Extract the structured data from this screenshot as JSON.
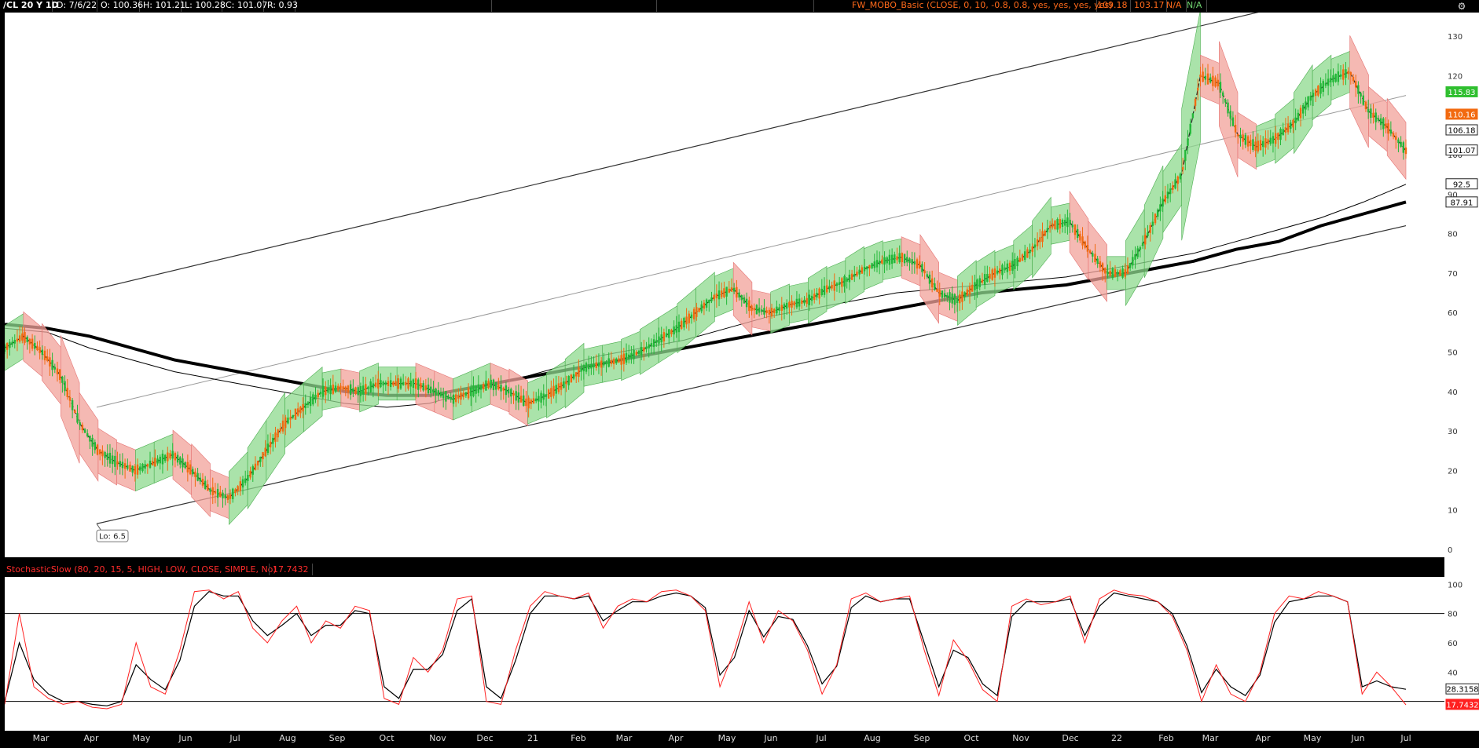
{
  "header": {
    "symbol": "/CL 20 Y 1D",
    "date": "D: 7/6/22",
    "open": "O: 100.36",
    "high": "H: 101.21",
    "low": "L: 100.28",
    "close": "C: 101.07",
    "range": "R: 0.93",
    "study_name": "FW_MOBO_Basic (CLOSE, 0, 10, -0.8, 0.8, yes, yes, yes, yes)",
    "study_val1": "109.18",
    "study_val2": "103.17",
    "study_na1": "N/A",
    "study_na2": "N/A"
  },
  "stoch_header": {
    "title": "StochasticSlow (80, 20, 15, 5, HIGH, LOW, CLOSE, SIMPLE, No)",
    "value": "17.7432"
  },
  "gear_icon": "⚙",
  "colors": {
    "up": "#22b838",
    "down": "#f26a10",
    "band_up": "#8ed98e",
    "band_down": "#f2a29a",
    "stoch_k": "#ff2020",
    "stoch_d": "#000000",
    "price_badge_green": "#2fbf2f",
    "price_badge_orange": "#f26a10"
  },
  "chart_data": [
    {
      "type": "line",
      "title": "/CL 20 Y 1D",
      "x_ticks": [
        "Mar",
        "Apr",
        "May",
        "Jun",
        "Jul",
        "Aug",
        "Sep",
        "Oct",
        "Nov",
        "Dec",
        "21",
        "Feb",
        "Mar",
        "Apr",
        "May",
        "Jun",
        "Jul",
        "Aug",
        "Sep",
        "Oct",
        "Nov",
        "Dec",
        "22",
        "Feb",
        "Mar",
        "Apr",
        "May",
        "Jun",
        "Jul"
      ],
      "y_ticks": [
        0,
        10,
        20,
        30,
        40,
        50,
        60,
        70,
        80,
        90,
        100,
        110,
        120,
        130
      ],
      "ylim": [
        -2,
        136
      ],
      "price_labels": [
        {
          "text": "115.83",
          "value": 115.83,
          "color": "green"
        },
        {
          "text": "110.16",
          "value": 110.16,
          "color": "orange"
        },
        {
          "text": "106.18",
          "value": 106.18,
          "color": "white"
        },
        {
          "text": "101.07",
          "value": 101.07,
          "color": "white"
        },
        {
          "text": "92.5",
          "value": 92.5,
          "color": "white"
        },
        {
          "text": "87.91",
          "value": 87.91,
          "color": "white"
        }
      ],
      "annotation": {
        "text": "Lo: 6.5",
        "value": 6.5
      },
      "close_series": [
        51,
        54,
        50,
        44,
        32,
        25,
        22,
        20,
        22,
        24,
        20,
        15,
        13,
        18,
        25,
        32,
        36,
        40,
        41,
        40,
        42,
        42,
        42,
        40,
        38,
        40,
        42,
        40,
        37,
        39,
        42,
        46,
        47,
        48,
        50,
        53,
        56,
        60,
        64,
        66,
        61,
        60,
        62,
        63,
        66,
        68,
        71,
        73,
        74,
        72,
        65,
        63,
        67,
        70,
        72,
        76,
        82,
        83,
        76,
        70,
        70,
        78,
        88,
        95,
        120,
        118,
        105,
        102,
        104,
        108,
        115,
        119,
        121,
        111,
        107,
        101
      ],
      "ma_thick": [
        57,
        56,
        54,
        51,
        48,
        46,
        44,
        42,
        40,
        39,
        39,
        41,
        43,
        45,
        47,
        49,
        51,
        53,
        55,
        57,
        59,
        61,
        63,
        65,
        66,
        67,
        69,
        71,
        73,
        76,
        78,
        82,
        85,
        88
      ],
      "ma_thin": [
        56,
        55,
        51,
        48,
        45,
        43,
        41,
        39,
        37,
        36,
        37,
        40,
        43,
        46,
        49,
        51,
        53,
        56,
        59,
        61,
        63,
        65,
        66,
        67,
        68,
        69,
        71,
        73,
        75,
        78,
        81,
        84,
        88,
        92.5
      ]
    },
    {
      "type": "line",
      "title": "StochasticSlow (80, 20, 15, 5, HIGH, LOW, CLOSE, SIMPLE, No)",
      "y_ticks": [
        20,
        40,
        60,
        80,
        100
      ],
      "ylim": [
        0,
        105
      ],
      "overbought": 80,
      "oversold": 20,
      "last_values": [
        {
          "text": "28.3158",
          "value": 28.3158
        },
        {
          "text": "17.7432",
          "value": 17.7432
        }
      ],
      "k_series": [
        18,
        80,
        30,
        22,
        18,
        20,
        16,
        15,
        18,
        60,
        30,
        25,
        55,
        95,
        96,
        90,
        95,
        70,
        60,
        75,
        85,
        60,
        75,
        70,
        85,
        82,
        22,
        18,
        50,
        40,
        55,
        90,
        92,
        20,
        18,
        55,
        85,
        95,
        92,
        90,
        94,
        70,
        85,
        90,
        88,
        95,
        96,
        92,
        82,
        30,
        55,
        88,
        60,
        82,
        75,
        55,
        25,
        45,
        90,
        94,
        88,
        90,
        92,
        55,
        24,
        62,
        48,
        28,
        20,
        85,
        90,
        86,
        88,
        92,
        60,
        90,
        96,
        93,
        92,
        88,
        78,
        55,
        20,
        45,
        25,
        20,
        40,
        80,
        92,
        90,
        95,
        92,
        88,
        25,
        40,
        30,
        17.7
      ],
      "d_series": [
        20,
        60,
        35,
        25,
        20,
        20,
        18,
        17,
        20,
        45,
        35,
        28,
        48,
        85,
        95,
        92,
        92,
        75,
        65,
        72,
        80,
        65,
        72,
        72,
        82,
        80,
        30,
        22,
        42,
        42,
        52,
        82,
        90,
        30,
        22,
        48,
        80,
        92,
        92,
        90,
        92,
        75,
        82,
        88,
        88,
        92,
        94,
        92,
        84,
        38,
        50,
        82,
        64,
        78,
        76,
        58,
        32,
        44,
        84,
        92,
        88,
        90,
        90,
        60,
        30,
        55,
        50,
        32,
        24,
        78,
        88,
        88,
        88,
        90,
        65,
        85,
        94,
        92,
        90,
        88,
        80,
        58,
        26,
        42,
        30,
        24,
        38,
        74,
        88,
        90,
        92,
        92,
        88,
        30,
        34,
        30,
        28.3
      ]
    }
  ]
}
